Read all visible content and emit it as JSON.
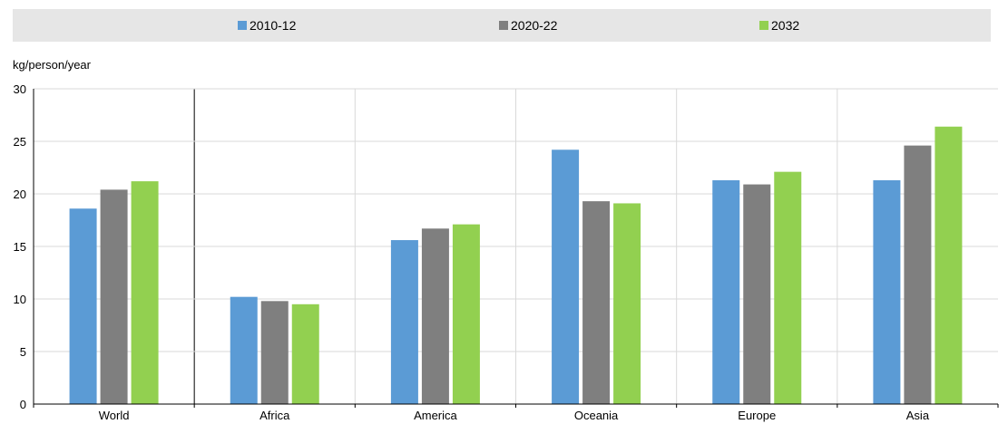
{
  "colors": {
    "2010-12": "#5b9bd5",
    "2020-22": "#7f7f7f",
    "2032": "#92d050",
    "legend_bg": "#e6e6e6",
    "grid": "#d9d9d9"
  },
  "legend": {
    "items": [
      {
        "label": "2010-12",
        "color": "#5b9bd5"
      },
      {
        "label": "2020-22",
        "color": "#7f7f7f"
      },
      {
        "label": "2032",
        "color": "#92d050"
      }
    ]
  },
  "chart_data": {
    "type": "bar",
    "title": "",
    "xlabel": "",
    "ylabel": "kg/person/year",
    "ylim": [
      0,
      30
    ],
    "yticks": [
      0,
      5,
      10,
      15,
      20,
      25,
      30
    ],
    "grid": true,
    "legend_position": "top",
    "categories": [
      "World",
      "Africa",
      "America",
      "Oceania",
      "Europe",
      "Asia"
    ],
    "series": [
      {
        "name": "2010-12",
        "values": [
          18.6,
          10.2,
          15.6,
          24.2,
          21.3,
          21.3
        ]
      },
      {
        "name": "2020-22",
        "values": [
          20.4,
          9.8,
          16.7,
          19.3,
          20.9,
          24.6
        ]
      },
      {
        "name": "2032",
        "values": [
          21.2,
          9.5,
          17.1,
          19.1,
          22.1,
          26.4
        ]
      }
    ]
  }
}
